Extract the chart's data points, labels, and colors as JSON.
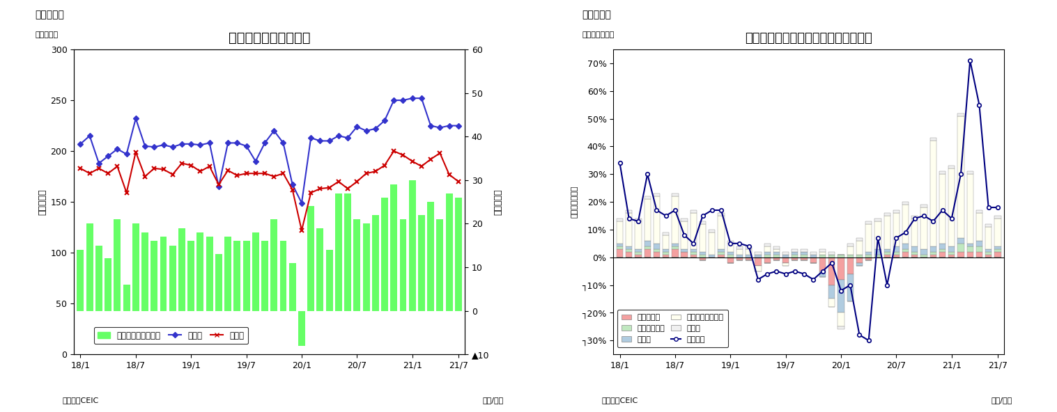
{
  "chart1": {
    "title": "マレーシア　貳易収支",
    "subtitle": "（図表７）",
    "ylabel_left": "（億ドル）",
    "ylabel_right": "（億ドル）",
    "source": "（資料）CEIC",
    "xlabel": "（年/月）",
    "ylim_left": [
      0,
      300
    ],
    "ylim_right": [
      -10,
      60
    ],
    "yticks_left": [
      0,
      50,
      100,
      150,
      200,
      250,
      300
    ],
    "yticks_right": [
      -10,
      0,
      10,
      20,
      30,
      40,
      50,
      60
    ],
    "xtick_labels": [
      "18/1",
      "18/7",
      "19/1",
      "19/7",
      "20/1",
      "20/7",
      "21/1",
      "21/7"
    ],
    "trade_balance": [
      14,
      20,
      15,
      12,
      21,
      6,
      20,
      18,
      16,
      17,
      15,
      19,
      16,
      18,
      17,
      13,
      17,
      16,
      16,
      18,
      16,
      21,
      16,
      11,
      -8,
      24,
      19,
      14,
      27,
      27,
      21,
      20,
      22,
      26,
      29,
      21,
      30,
      22,
      25,
      21,
      27,
      26
    ],
    "exports": [
      207,
      215,
      188,
      195,
      202,
      197,
      232,
      205,
      204,
      206,
      204,
      207,
      207,
      206,
      208,
      165,
      208,
      208,
      205,
      190,
      208,
      220,
      208,
      167,
      149,
      213,
      210,
      210,
      215,
      213,
      224,
      220,
      222,
      230,
      250,
      250,
      252,
      252,
      225,
      223,
      225,
      225
    ],
    "imports": [
      183,
      178,
      183,
      178,
      185,
      159,
      199,
      175,
      183,
      182,
      177,
      188,
      186,
      180,
      185,
      167,
      181,
      176,
      178,
      178,
      178,
      175,
      178,
      162,
      122,
      159,
      163,
      164,
      170,
      163,
      170,
      178,
      180,
      186,
      200,
      196,
      190,
      185,
      192,
      198,
      177,
      170
    ],
    "bar_color": "#66ff66",
    "export_color": "#3333cc",
    "import_color": "#cc0000",
    "legend_labels": [
      "貳易収支（右目盛）",
      "輸出額",
      "輸入額"
    ]
  },
  "chart2": {
    "title": "マレーシア　輸出の伸び率（品目別）",
    "subtitle": "（図表８）",
    "ylabel_left": "（前年同月比）",
    "source": "（資料）CEIC",
    "xlabel": "（年/月）",
    "ylim": [
      -0.35,
      0.75
    ],
    "yticks": [
      -0.3,
      -0.2,
      -0.1,
      0.0,
      0.1,
      0.2,
      0.3,
      0.4,
      0.5,
      0.6,
      0.7
    ],
    "ytick_labels": [
      "┐30%",
      "┐20%",
      "┐10%",
      "0%",
      "10%",
      "20%",
      "30%",
      "40%",
      "50%",
      "60%",
      "70%"
    ],
    "xtick_labels": [
      "18/1",
      "18/7",
      "19/1",
      "19/7",
      "20/1",
      "20/7",
      "21/1",
      "21/7"
    ],
    "mineral_fuels": [
      0.03,
      0.02,
      0.01,
      0.03,
      0.02,
      0.01,
      0.03,
      0.02,
      0.01,
      -0.01,
      0.0,
      0.01,
      -0.02,
      -0.01,
      -0.01,
      -0.03,
      -0.02,
      -0.01,
      -0.02,
      -0.01,
      -0.01,
      -0.02,
      -0.05,
      -0.1,
      -0.08,
      -0.06,
      -0.02,
      -0.01,
      0.0,
      0.01,
      0.01,
      0.02,
      0.01,
      0.0,
      0.01,
      0.02,
      0.01,
      0.02,
      0.02,
      0.02,
      0.01,
      0.02
    ],
    "animal_veg_oils": [
      0.01,
      0.01,
      0.01,
      0.01,
      0.01,
      0.01,
      0.01,
      0.0,
      0.01,
      0.01,
      0.0,
      0.01,
      0.01,
      0.0,
      0.0,
      0.0,
      0.01,
      0.01,
      0.0,
      0.01,
      0.01,
      0.0,
      0.01,
      0.01,
      0.01,
      0.01,
      0.01,
      0.01,
      0.01,
      0.01,
      0.01,
      0.01,
      0.01,
      0.01,
      0.01,
      0.01,
      0.01,
      0.03,
      0.02,
      0.02,
      0.01,
      0.01
    ],
    "manufactured": [
      0.01,
      0.01,
      0.01,
      0.02,
      0.02,
      0.01,
      0.01,
      0.01,
      0.01,
      0.01,
      0.01,
      0.01,
      0.01,
      0.01,
      0.01,
      0.01,
      0.01,
      0.01,
      0.01,
      0.01,
      0.01,
      0.01,
      -0.02,
      -0.05,
      -0.12,
      -0.1,
      -0.01,
      0.01,
      0.02,
      0.01,
      0.02,
      0.02,
      0.02,
      0.02,
      0.02,
      0.02,
      0.02,
      0.02,
      0.01,
      0.02,
      0.01,
      0.01
    ],
    "machinery": [
      0.08,
      0.12,
      0.1,
      0.15,
      0.17,
      0.05,
      0.17,
      0.1,
      0.13,
      0.1,
      0.08,
      0.12,
      0.03,
      0.02,
      0.02,
      -0.02,
      0.02,
      0.01,
      -0.01,
      0.0,
      0.0,
      0.0,
      0.01,
      -0.03,
      -0.05,
      0.03,
      0.05,
      0.1,
      0.1,
      0.12,
      0.12,
      0.14,
      0.1,
      0.15,
      0.38,
      0.25,
      0.28,
      0.44,
      0.25,
      0.1,
      0.08,
      0.1
    ],
    "other": [
      0.01,
      0.01,
      0.01,
      0.01,
      0.01,
      0.01,
      0.01,
      0.01,
      0.01,
      0.01,
      0.01,
      0.01,
      0.01,
      0.01,
      0.01,
      0.01,
      0.01,
      0.01,
      0.01,
      0.01,
      0.01,
      0.01,
      0.01,
      0.01,
      -0.01,
      0.01,
      0.01,
      0.01,
      0.01,
      0.01,
      0.01,
      0.01,
      0.01,
      0.01,
      0.01,
      0.01,
      0.01,
      0.01,
      0.01,
      0.01,
      0.01,
      0.01
    ],
    "total_export_growth": [
      0.34,
      0.14,
      0.13,
      0.3,
      0.17,
      0.15,
      0.17,
      0.08,
      0.05,
      0.15,
      0.17,
      0.17,
      0.05,
      0.05,
      0.04,
      -0.08,
      -0.06,
      -0.05,
      -0.06,
      -0.05,
      -0.06,
      -0.08,
      -0.05,
      -0.02,
      -0.12,
      -0.1,
      -0.28,
      -0.3,
      0.07,
      -0.1,
      0.07,
      0.09,
      0.14,
      0.15,
      0.13,
      0.17,
      0.14,
      0.3,
      0.71,
      0.55,
      0.18,
      0.18
    ],
    "colors": {
      "mineral_fuels": "#f4a0a0",
      "animal_veg_oils": "#c0e8c0",
      "manufactured": "#b0cce0",
      "machinery": "#fffff0",
      "other": "#f0f0f0",
      "total_line": "#000080"
    },
    "legend_labels": [
      "鉱物性燃料",
      "動植物性油脂",
      "製造品",
      "機械・輸送用機器",
      "その他",
      "輸出合計"
    ]
  }
}
